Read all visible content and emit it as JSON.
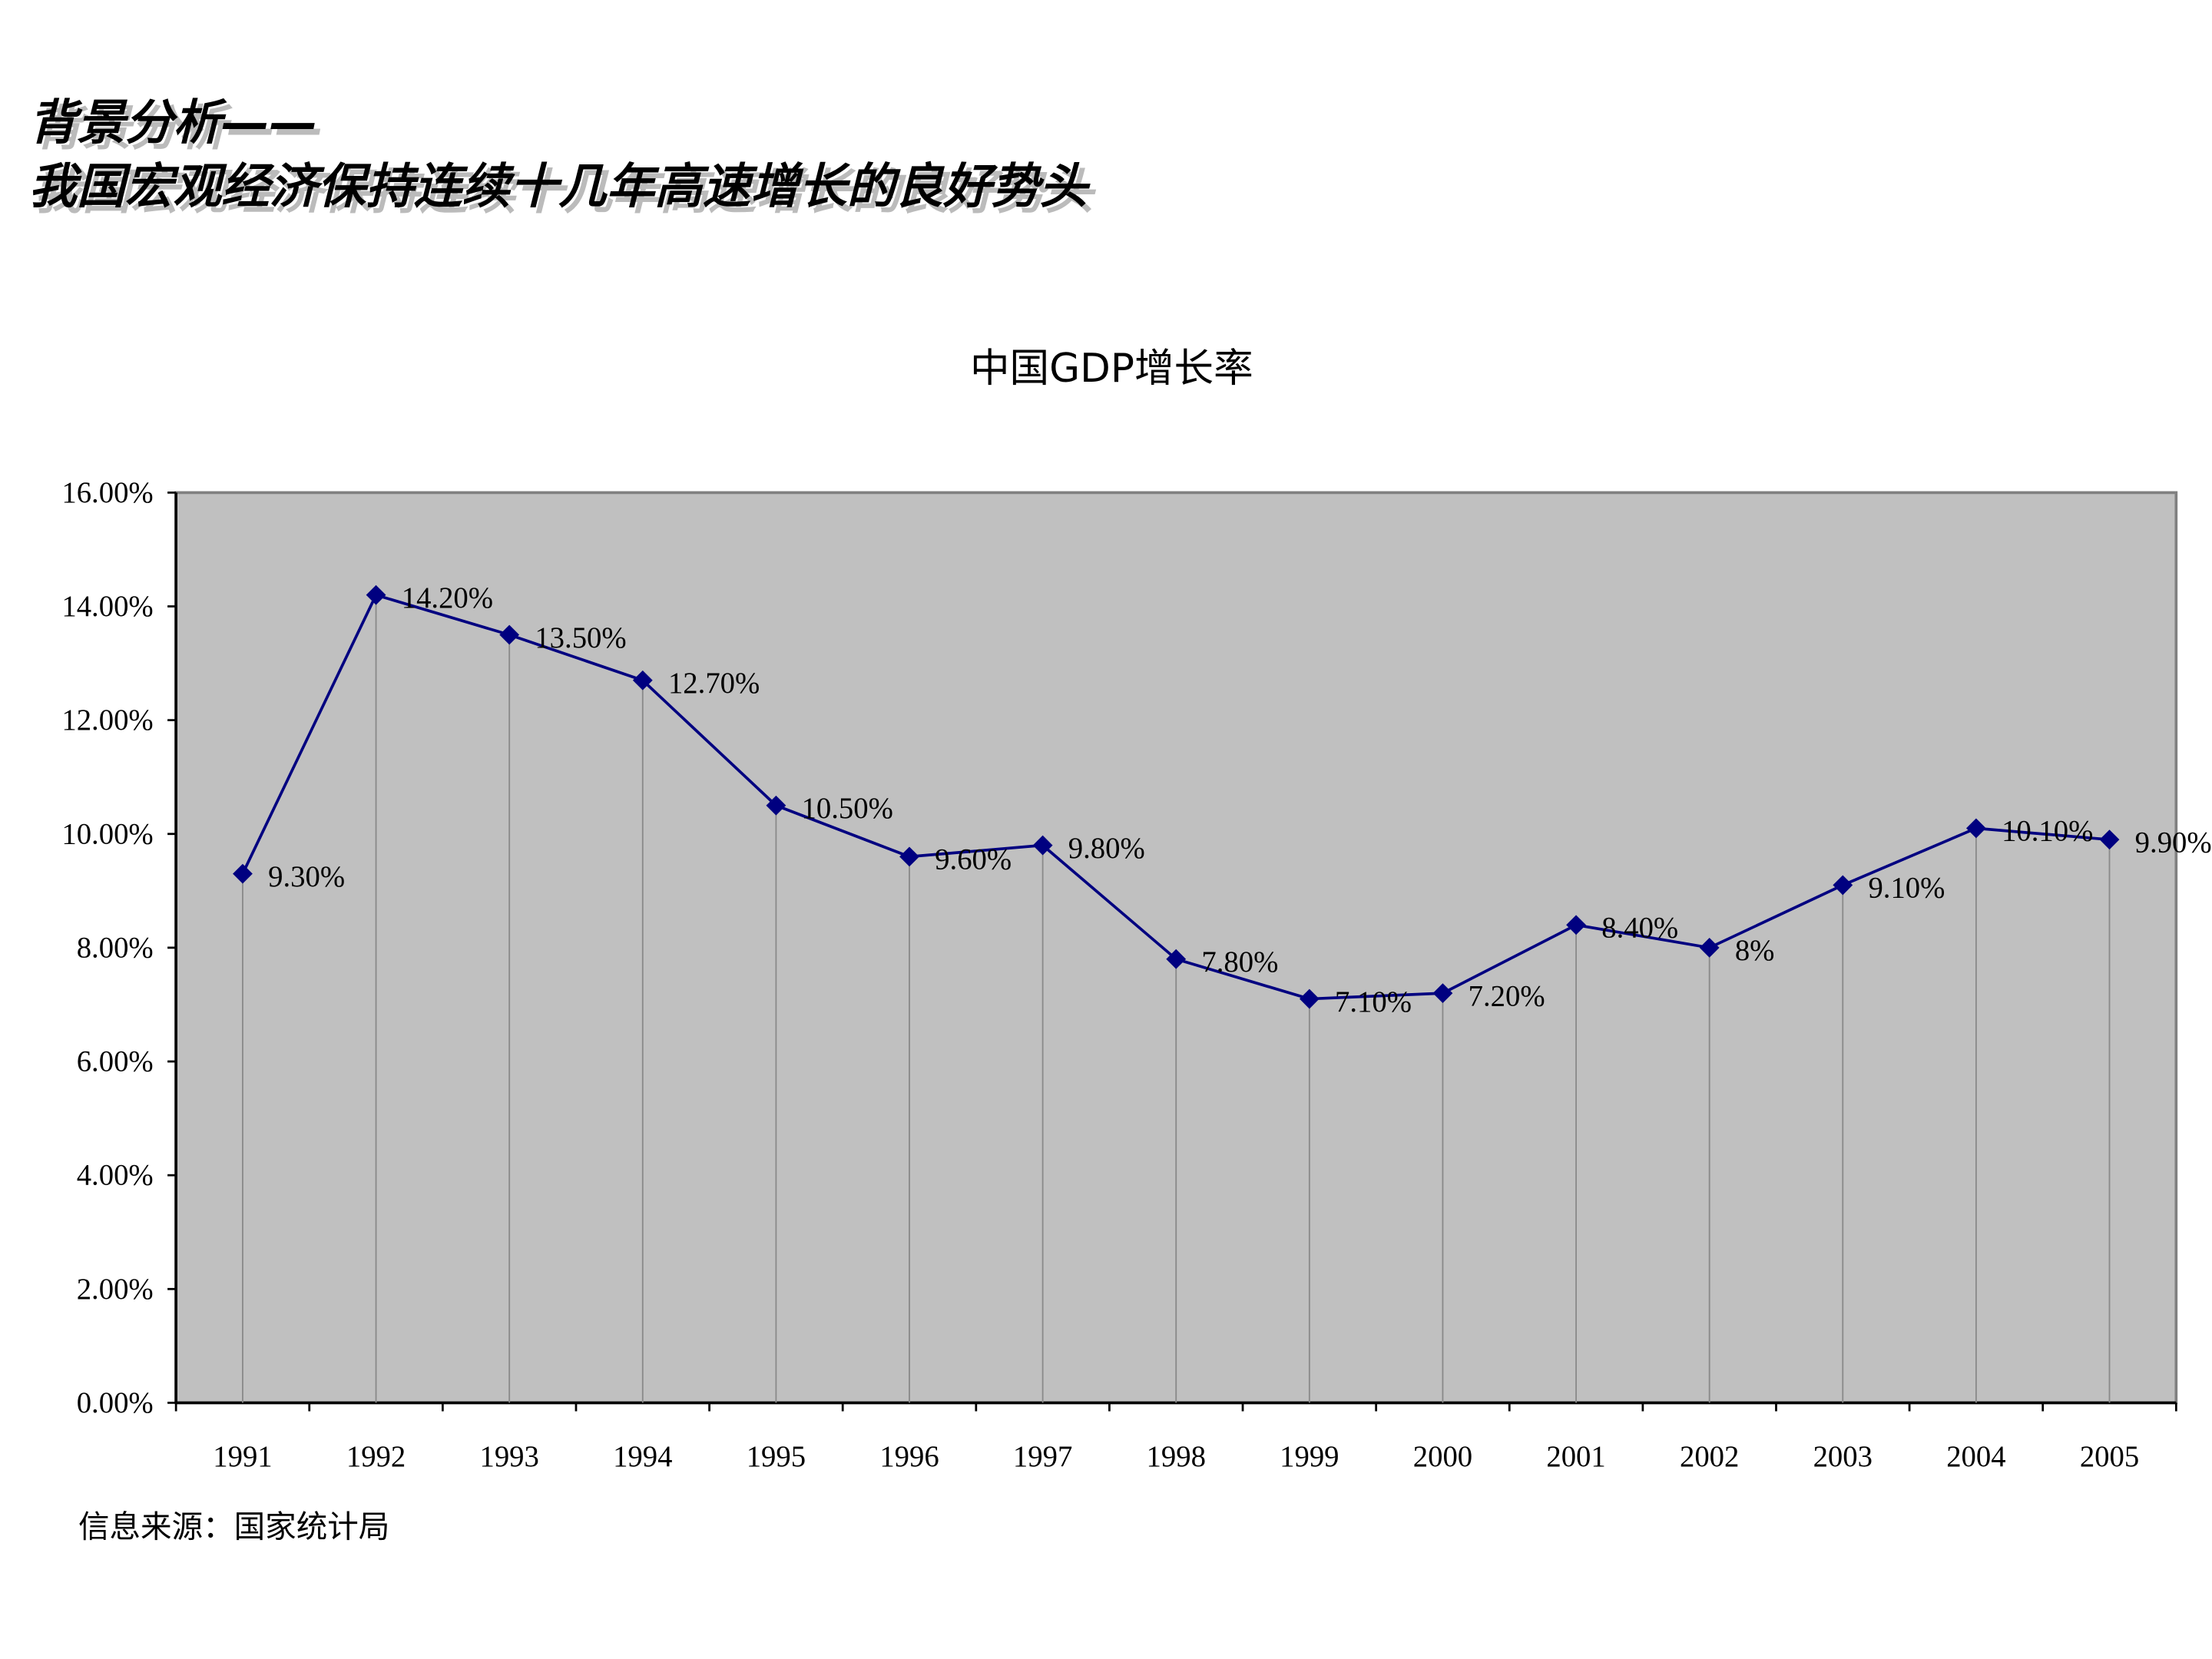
{
  "header": {
    "lines": [
      "背景分析——",
      "我国宏观经济保持连续十几年高速增长的良好势头"
    ]
  },
  "chart_data": {
    "type": "line",
    "title": "中国GDP增长率",
    "categories": [
      "1991",
      "1992",
      "1993",
      "1994",
      "1995",
      "1996",
      "1997",
      "1998",
      "1999",
      "2000",
      "2001",
      "2002",
      "2003",
      "2004",
      "2005"
    ],
    "series": [
      {
        "name": "GDP增长率",
        "color": "#000080",
        "values": [
          9.3,
          14.2,
          13.5,
          12.7,
          10.5,
          9.6,
          9.8,
          7.8,
          7.1,
          7.2,
          8.4,
          8,
          9.1,
          10.1,
          9.9
        ],
        "value_labels": [
          "9.30%",
          "14.20%",
          "13.50%",
          "12.70%",
          "10.50%",
          "9.60%",
          "9.80%",
          "7.80%",
          "7.10%",
          "7.20%",
          "8.40%",
          "8%",
          "9.10%",
          "10.10%",
          "9.90%"
        ]
      }
    ],
    "ylim": [
      0,
      16
    ],
    "yticks": [
      {
        "value": 0,
        "label": "0.00%"
      },
      {
        "value": 2,
        "label": "2.00%"
      },
      {
        "value": 4,
        "label": "4.00%"
      },
      {
        "value": 6,
        "label": "6.00%"
      },
      {
        "value": 8,
        "label": "8.00%"
      },
      {
        "value": 10,
        "label": "10.00%"
      },
      {
        "value": 12,
        "label": "12.00%"
      },
      {
        "value": 14,
        "label": "14.00%"
      },
      {
        "value": 16,
        "label": "16.00%"
      }
    ],
    "drop_lines": true
  },
  "footer": {
    "source": "信息来源：国家统计局"
  }
}
